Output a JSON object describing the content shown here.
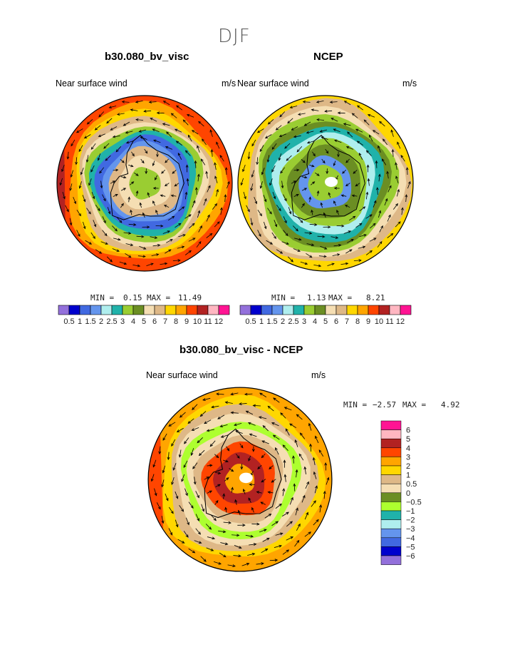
{
  "season": "DJF",
  "panels": [
    {
      "title": "b30.080_bv_visc",
      "left_label": "Near surface wind",
      "right_label": "m/s",
      "min_label": "MIN =",
      "min_value": "0.15",
      "max_label": "MAX =",
      "max_value": "11.49",
      "style": "model"
    },
    {
      "title": "NCEP",
      "left_label": "Near surface wind",
      "right_label": "m/s",
      "min_label": "MIN =",
      "min_value": "1.13",
      "max_label": "MAX =",
      "max_value": "8.21",
      "style": "obs"
    },
    {
      "title": "b30.080_bv_visc - NCEP",
      "left_label": "Near surface wind",
      "right_label": "m/s",
      "min_label": "MIN =",
      "min_value": "−2.57",
      "max_label": "MAX =",
      "max_value": "4.92",
      "style": "diff"
    }
  ],
  "speed_scale": {
    "colors": [
      "#9370db",
      "#0000cd",
      "#4169e1",
      "#6495ed",
      "#afeeee",
      "#20b2aa",
      "#9acd32",
      "#6b8e23",
      "#f5deb3",
      "#deb887",
      "#ffd700",
      "#ffa500",
      "#ff4500",
      "#b22222",
      "#ffb6c1",
      "#ff1493"
    ],
    "labels": [
      "0.5",
      "1",
      "1.5",
      "2",
      "2.5",
      "3",
      "4",
      "5",
      "6",
      "7",
      "8",
      "9",
      "10",
      "11",
      "12"
    ]
  },
  "diff_scale": {
    "colors": [
      "#ff1493",
      "#ffb6c1",
      "#b22222",
      "#ff4500",
      "#ffa500",
      "#ffd700",
      "#deb887",
      "#f5deb3",
      "#6b8e23",
      "#adff2f",
      "#20b2aa",
      "#afeeee",
      "#6495ed",
      "#4169e1",
      "#0000cd",
      "#9370db"
    ],
    "labels": [
      "6",
      "5",
      "4",
      "3",
      "2",
      "1",
      "0.5",
      "0",
      "−0.5",
      "−1",
      "−2",
      "−3",
      "−4",
      "−5",
      "−6"
    ]
  }
}
